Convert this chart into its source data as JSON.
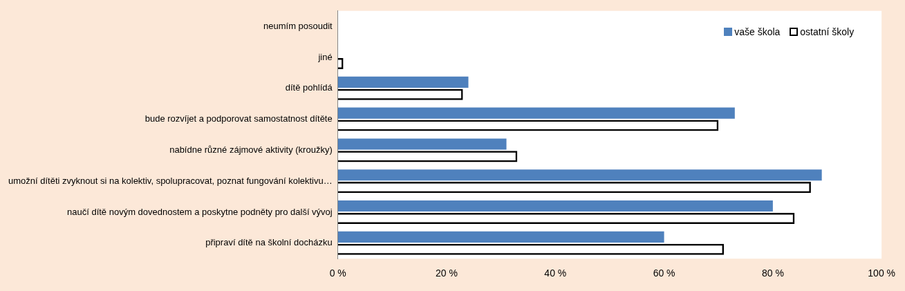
{
  "chart_data": {
    "type": "bar",
    "orientation": "horizontal",
    "categories": [
      "neumím posoudit",
      "jiné",
      "dítě pohlídá",
      "bude rozvíjet a podporovat samostatnost dítěte",
      "nabídne různé zájmové aktivity (kroužky)",
      "umožní dítěti zvyknout si na kolektiv, spolupracovat, poznat fungování kolektivu…",
      "naučí dítě novým dovednostem a poskytne podněty pro další vývoj",
      "připraví dítě na školní docházku"
    ],
    "series": [
      {
        "name": "vaše škola",
        "color": "#4f81bd",
        "values": [
          0,
          0,
          24,
          73,
          31,
          89,
          80,
          60
        ]
      },
      {
        "name": "ostatní školy",
        "color": "#000000",
        "values": [
          0,
          1,
          23,
          70,
          33,
          87,
          84,
          71
        ]
      }
    ],
    "xlim": [
      0,
      100
    ],
    "xticks": [
      {
        "value": 0,
        "label": "0 %"
      },
      {
        "value": 20,
        "label": "20 %"
      },
      {
        "value": 40,
        "label": "40 %"
      },
      {
        "value": 60,
        "label": "60 %"
      },
      {
        "value": 80,
        "label": "80 %"
      },
      {
        "value": 100,
        "label": "100 %"
      }
    ],
    "grid": false,
    "legend": "top right"
  }
}
